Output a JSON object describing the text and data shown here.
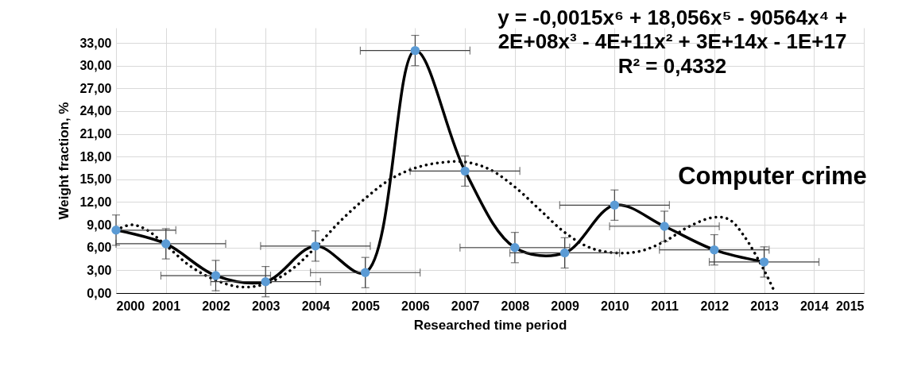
{
  "chart_data": {
    "type": "scatter",
    "xlabel": "Researched time period",
    "ylabel": "Weight fraction, %",
    "x": [
      2000,
      2001,
      2002,
      2003,
      2004,
      2005,
      2006,
      2007,
      2008,
      2009,
      2010,
      2011,
      2012,
      2013
    ],
    "series": [
      {
        "type": "line",
        "color": "#000000",
        "line_style": "solid",
        "values": [
          8.3,
          6.5,
          2.3,
          1.5,
          6.2,
          2.7,
          32.0,
          16.1,
          6.0,
          5.3,
          11.6,
          8.8,
          5.7,
          4.1
        ]
      },
      {
        "type": "line",
        "color": "#000000",
        "line_style": "dotted",
        "x": [
          2000,
          2000.3,
          2000.6,
          2001,
          2001.5,
          2002,
          2002.5,
          2003,
          2003.5,
          2004,
          2004.5,
          2005,
          2005.5,
          2006,
          2006.5,
          2007,
          2007.5,
          2008,
          2008.5,
          2009,
          2009.5,
          2010,
          2010.5,
          2011,
          2011.5,
          2012,
          2012.3,
          2012.6,
          2013,
          2013.2
        ],
        "values": [
          8.3,
          9.0,
          8.4,
          6.3,
          3.5,
          1.7,
          0.8,
          1.2,
          3.0,
          6.0,
          9.5,
          12.5,
          15.0,
          16.5,
          17.2,
          17.3,
          16.3,
          14.0,
          11.0,
          8.0,
          6.0,
          5.3,
          5.5,
          6.8,
          8.8,
          10.0,
          9.7,
          7.5,
          3.0,
          0.3
        ]
      },
      {
        "color": "#5b9bd5",
        "marker": "circle",
        "values": [
          8.3,
          6.5,
          2.3,
          1.5,
          6.2,
          2.7,
          32.0,
          16.1,
          6.0,
          5.3,
          11.6,
          8.8,
          5.7,
          4.1
        ],
        "errors": [
          2,
          2,
          2,
          2,
          2,
          2,
          2,
          2,
          2,
          2,
          2,
          2,
          2,
          2
        ],
        "xerrors": [
          [
            2000,
            2001.2
          ],
          [
            2000,
            2002.2
          ],
          1.1,
          1.1,
          1.1,
          1.1,
          1.1,
          1.1,
          1.1,
          1.1,
          1.1,
          1.1,
          1.1,
          1.1
        ]
      }
    ],
    "xlim": [
      2000,
      2015
    ],
    "xticks": [
      2000,
      2001,
      2002,
      2003,
      2004,
      2005,
      2006,
      2007,
      2008,
      2009,
      2010,
      2011,
      2012,
      2013,
      2014,
      2015
    ],
    "ylim": [
      0,
      35
    ],
    "yticks": [
      {
        "value": 0,
        "label": "0,00"
      },
      {
        "value": 3,
        "label": "3,00"
      },
      {
        "value": 6,
        "label": "6,00"
      },
      {
        "value": 9,
        "label": "9,00"
      },
      {
        "value": 12,
        "label": "12,00"
      },
      {
        "value": 15,
        "label": "15,00"
      },
      {
        "value": 18,
        "label": "18,00"
      },
      {
        "value": 21,
        "label": "21,00"
      },
      {
        "value": 24,
        "label": "24,00"
      },
      {
        "value": 27,
        "label": "27,00"
      },
      {
        "value": 30,
        "label": "30,00"
      },
      {
        "value": 33,
        "label": "33,00"
      }
    ],
    "grid": true,
    "annotations": [
      "y = -0,0015x⁶ + 18,056x⁵ - 90564x⁴ +",
      "2E+08x³ - 4E+11x² + 3E+14x - 1E+17",
      "R² = 0,4332",
      "Computer crime"
    ]
  }
}
